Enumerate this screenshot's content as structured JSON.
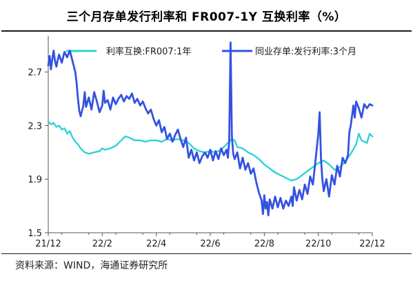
{
  "header": {
    "title": "三个月存单发行利率和 FR007-1Y 互换利率（%）"
  },
  "footer": {
    "source": "资料来源：WIND，海通证券研究所"
  },
  "colors": {
    "swap": "#2ed3d6",
    "cd": "#3452e0",
    "axis": "#555555",
    "text": "#1a1a1a"
  },
  "chart_data": {
    "type": "line",
    "title": "三个月存单发行利率和 FR007-1Y 互换利率（%）",
    "xlabel": "",
    "ylabel": "",
    "x_tick_labels": [
      "21/12",
      "22/2",
      "22/4",
      "22/6",
      "22/8",
      "22/10",
      "22/12"
    ],
    "y_ticks": [
      1.5,
      1.9,
      2.3,
      2.7
    ],
    "ylim": [
      1.5,
      2.95
    ],
    "x_range_months": [
      0,
      12
    ],
    "legend_position": "top",
    "grid": false,
    "series": [
      {
        "name": "利率互换:FR007:1年",
        "color_key": "swap",
        "points": [
          [
            0.0,
            2.33
          ],
          [
            0.1,
            2.31
          ],
          [
            0.2,
            2.32
          ],
          [
            0.3,
            2.29
          ],
          [
            0.4,
            2.3
          ],
          [
            0.5,
            2.27
          ],
          [
            0.6,
            2.28
          ],
          [
            0.7,
            2.24
          ],
          [
            0.8,
            2.26
          ],
          [
            0.9,
            2.21
          ],
          [
            1.0,
            2.18
          ],
          [
            1.1,
            2.16
          ],
          [
            1.2,
            2.13
          ],
          [
            1.35,
            2.1
          ],
          [
            1.5,
            2.09
          ],
          [
            1.7,
            2.1
          ],
          [
            1.9,
            2.11
          ],
          [
            2.0,
            2.13
          ],
          [
            2.1,
            2.12
          ],
          [
            2.3,
            2.13
          ],
          [
            2.5,
            2.15
          ],
          [
            2.7,
            2.19
          ],
          [
            2.85,
            2.22
          ],
          [
            3.0,
            2.21
          ],
          [
            3.2,
            2.19
          ],
          [
            3.4,
            2.19
          ],
          [
            3.6,
            2.18
          ],
          [
            3.8,
            2.19
          ],
          [
            4.0,
            2.19
          ],
          [
            4.2,
            2.18
          ],
          [
            4.4,
            2.2
          ],
          [
            4.6,
            2.19
          ],
          [
            4.8,
            2.2
          ],
          [
            5.0,
            2.19
          ],
          [
            5.2,
            2.17
          ],
          [
            5.4,
            2.13
          ],
          [
            5.6,
            2.11
          ],
          [
            5.8,
            2.1
          ],
          [
            6.0,
            2.11
          ],
          [
            6.2,
            2.1
          ],
          [
            6.4,
            2.12
          ],
          [
            6.6,
            2.16
          ],
          [
            6.8,
            2.2
          ],
          [
            6.9,
            2.19
          ],
          [
            7.0,
            2.14
          ],
          [
            7.2,
            2.13
          ],
          [
            7.4,
            2.1
          ],
          [
            7.6,
            2.08
          ],
          [
            7.8,
            2.05
          ],
          [
            8.0,
            2.01
          ],
          [
            8.2,
            1.98
          ],
          [
            8.4,
            1.95
          ],
          [
            8.6,
            1.93
          ],
          [
            8.8,
            1.91
          ],
          [
            9.0,
            1.89
          ],
          [
            9.2,
            1.9
          ],
          [
            9.4,
            1.93
          ],
          [
            9.6,
            1.96
          ],
          [
            9.8,
            1.99
          ],
          [
            10.0,
            2.02
          ],
          [
            10.2,
            2.04
          ],
          [
            10.4,
            2.01
          ],
          [
            10.6,
            1.97
          ],
          [
            10.8,
            1.99
          ],
          [
            11.0,
            2.03
          ],
          [
            11.2,
            2.09
          ],
          [
            11.4,
            2.16
          ],
          [
            11.5,
            2.24
          ],
          [
            11.6,
            2.19
          ],
          [
            11.8,
            2.17
          ],
          [
            11.9,
            2.24
          ],
          [
            12.0,
            2.22
          ]
        ]
      },
      {
        "name": "同业存单:发行利率:3个月",
        "color_key": "cd",
        "points": [
          [
            0.0,
            2.75
          ],
          [
            0.05,
            2.82
          ],
          [
            0.1,
            2.72
          ],
          [
            0.15,
            2.8
          ],
          [
            0.2,
            2.86
          ],
          [
            0.25,
            2.78
          ],
          [
            0.3,
            2.74
          ],
          [
            0.35,
            2.79
          ],
          [
            0.4,
            2.83
          ],
          [
            0.5,
            2.77
          ],
          [
            0.6,
            2.85
          ],
          [
            0.7,
            2.81
          ],
          [
            0.8,
            2.86
          ],
          [
            0.9,
            2.78
          ],
          [
            1.0,
            2.7
          ],
          [
            1.05,
            2.62
          ],
          [
            1.1,
            2.5
          ],
          [
            1.15,
            2.41
          ],
          [
            1.2,
            2.37
          ],
          [
            1.3,
            2.45
          ],
          [
            1.35,
            2.55
          ],
          [
            1.4,
            2.44
          ],
          [
            1.5,
            2.51
          ],
          [
            1.6,
            2.42
          ],
          [
            1.7,
            2.55
          ],
          [
            1.8,
            2.48
          ],
          [
            1.9,
            2.4
          ],
          [
            2.0,
            2.45
          ],
          [
            2.05,
            2.56
          ],
          [
            2.1,
            2.47
          ],
          [
            2.2,
            2.49
          ],
          [
            2.3,
            2.42
          ],
          [
            2.4,
            2.51
          ],
          [
            2.5,
            2.46
          ],
          [
            2.6,
            2.5
          ],
          [
            2.7,
            2.53
          ],
          [
            2.8,
            2.48
          ],
          [
            2.9,
            2.52
          ],
          [
            3.0,
            2.5
          ],
          [
            3.1,
            2.54
          ],
          [
            3.2,
            2.47
          ],
          [
            3.3,
            2.5
          ],
          [
            3.4,
            2.45
          ],
          [
            3.5,
            2.48
          ],
          [
            3.6,
            2.43
          ],
          [
            3.7,
            2.39
          ],
          [
            3.8,
            2.42
          ],
          [
            3.9,
            2.35
          ],
          [
            4.0,
            2.3
          ],
          [
            4.1,
            2.34
          ],
          [
            4.2,
            2.25
          ],
          [
            4.3,
            2.29
          ],
          [
            4.4,
            2.2
          ],
          [
            4.5,
            2.24
          ],
          [
            4.6,
            2.18
          ],
          [
            4.7,
            2.23
          ],
          [
            4.8,
            2.27
          ],
          [
            4.9,
            2.2
          ],
          [
            5.0,
            2.14
          ],
          [
            5.1,
            2.21
          ],
          [
            5.2,
            2.06
          ],
          [
            5.3,
            2.12
          ],
          [
            5.4,
            2.04
          ],
          [
            5.5,
            2.1
          ],
          [
            5.6,
            2.02
          ],
          [
            5.7,
            2.07
          ],
          [
            5.8,
            2.1
          ],
          [
            5.9,
            2.06
          ],
          [
            6.0,
            2.12
          ],
          [
            6.1,
            2.04
          ],
          [
            6.2,
            2.11
          ],
          [
            6.3,
            2.05
          ],
          [
            6.4,
            2.13
          ],
          [
            6.5,
            2.08
          ],
          [
            6.6,
            2.12
          ],
          [
            6.65,
            2.06
          ],
          [
            6.7,
            2.18
          ],
          [
            6.75,
            2.92
          ],
          [
            6.8,
            2.22
          ],
          [
            6.85,
            2.09
          ],
          [
            6.9,
            2.05
          ],
          [
            7.0,
            2.1
          ],
          [
            7.1,
            1.98
          ],
          [
            7.2,
            2.06
          ],
          [
            7.3,
            1.97
          ],
          [
            7.4,
            2.02
          ],
          [
            7.5,
            1.94
          ],
          [
            7.6,
            1.98
          ],
          [
            7.7,
            1.88
          ],
          [
            7.8,
            1.8
          ],
          [
            7.9,
            1.74
          ],
          [
            7.95,
            1.64
          ],
          [
            8.0,
            1.78
          ],
          [
            8.05,
            1.68
          ],
          [
            8.1,
            1.73
          ],
          [
            8.15,
            1.63
          ],
          [
            8.2,
            1.75
          ],
          [
            8.3,
            1.68
          ],
          [
            8.4,
            1.77
          ],
          [
            8.5,
            1.69
          ],
          [
            8.6,
            1.76
          ],
          [
            8.7,
            1.68
          ],
          [
            8.8,
            1.74
          ],
          [
            8.9,
            1.7
          ],
          [
            9.0,
            1.77
          ],
          [
            9.05,
            1.7
          ],
          [
            9.1,
            1.84
          ],
          [
            9.2,
            1.74
          ],
          [
            9.3,
            1.82
          ],
          [
            9.4,
            1.75
          ],
          [
            9.5,
            1.86
          ],
          [
            9.6,
            1.79
          ],
          [
            9.7,
            1.92
          ],
          [
            9.8,
            1.86
          ],
          [
            9.9,
            2.05
          ],
          [
            10.0,
            2.24
          ],
          [
            10.05,
            2.4
          ],
          [
            10.1,
            2.05
          ],
          [
            10.15,
            1.9
          ],
          [
            10.2,
            1.81
          ],
          [
            10.3,
            1.9
          ],
          [
            10.4,
            1.77
          ],
          [
            10.5,
            1.93
          ],
          [
            10.6,
            1.86
          ],
          [
            10.7,
            2.0
          ],
          [
            10.8,
            1.92
          ],
          [
            10.9,
            2.06
          ],
          [
            11.0,
            2.02
          ],
          [
            11.1,
            2.08
          ],
          [
            11.15,
            2.25
          ],
          [
            11.2,
            2.3
          ],
          [
            11.3,
            2.45
          ],
          [
            11.35,
            2.36
          ],
          [
            11.4,
            2.48
          ],
          [
            11.5,
            2.43
          ],
          [
            11.6,
            2.36
          ],
          [
            11.7,
            2.46
          ],
          [
            11.8,
            2.43
          ],
          [
            11.9,
            2.46
          ],
          [
            12.0,
            2.45
          ]
        ]
      }
    ]
  }
}
